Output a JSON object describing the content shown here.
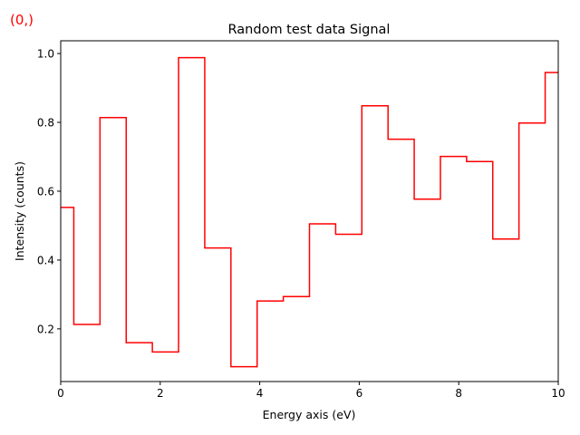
{
  "corner_label": "(0,)",
  "corner_label_color": "#ff0000",
  "chart_data": {
    "type": "line",
    "step": "mid",
    "title": "Random test data Signal",
    "xlabel": "Energy axis (eV)",
    "ylabel": "Intensity (counts)",
    "xlim": [
      0,
      10
    ],
    "ylim": [
      0.047,
      1.037
    ],
    "xticks": [
      0,
      2,
      4,
      6,
      8,
      10
    ],
    "yticks": [
      0.2,
      0.4,
      0.6,
      0.8,
      1.0
    ],
    "xtick_labels": [
      "0",
      "2",
      "4",
      "6",
      "8",
      "10"
    ],
    "ytick_labels": [
      "0.2",
      "0.4",
      "0.6",
      "0.8",
      "1.0"
    ],
    "grid": false,
    "series": [
      {
        "color": "#ff0000",
        "x": [
          0,
          0.526,
          1.053,
          1.579,
          2.105,
          2.632,
          3.158,
          3.684,
          4.211,
          4.737,
          5.263,
          5.789,
          6.316,
          6.842,
          7.368,
          7.895,
          8.421,
          8.947,
          9.474,
          10
        ],
        "y": [
          0.553,
          0.213,
          0.814,
          0.16,
          0.133,
          0.988,
          0.435,
          0.09,
          0.281,
          0.294,
          0.505,
          0.475,
          0.848,
          0.751,
          0.577,
          0.701,
          0.686,
          0.461,
          0.798,
          0.945
        ]
      }
    ]
  }
}
